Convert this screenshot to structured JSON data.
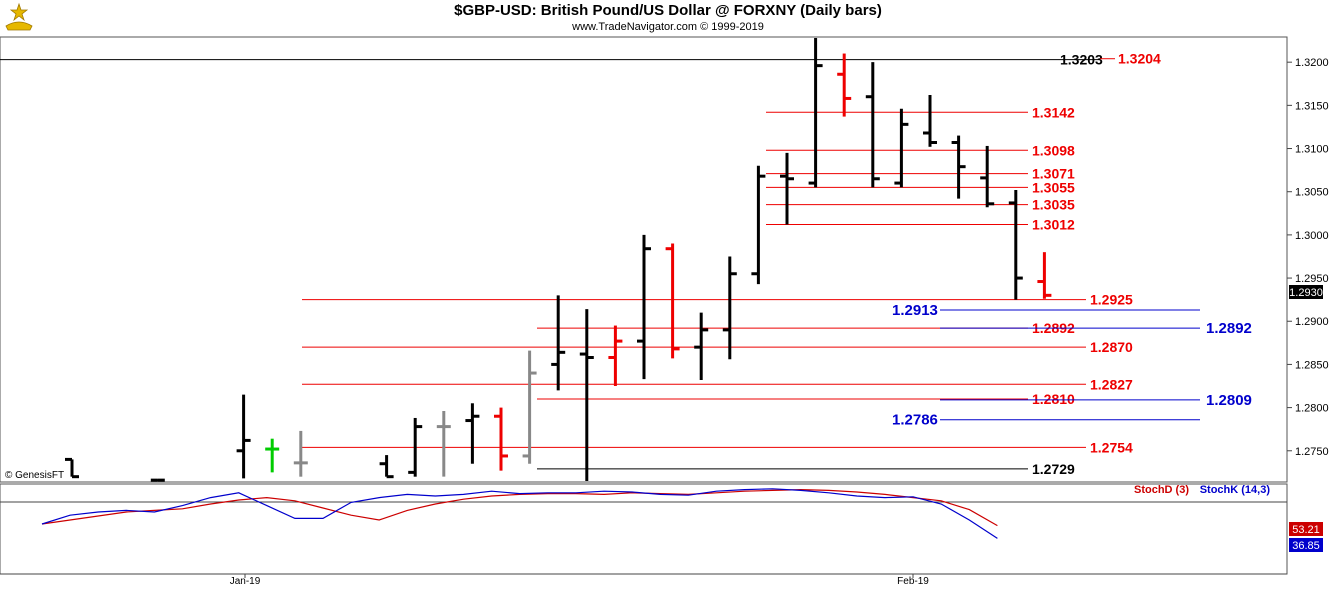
{
  "header": {
    "title": "$GBP-USD:  British Pound/US Dollar @ FORXNY  (Daily bars)",
    "subtitle": "www.TradeNavigator.com © 1999-2019"
  },
  "watermark": "© GenesisFT",
  "colors": {
    "up_bar": "#000000",
    "down_bar": "#ee0000",
    "neutral_bar": "#888888",
    "level_red": "#ee0000",
    "level_blue": "#0000cc",
    "stoch_d": "#cc0000",
    "stoch_k": "#0000cc"
  },
  "chart_data": [
    {
      "type": "ohlc",
      "title": "$GBP-USD:  British Pound/US Dollar @ FORXNY  (Daily bars)",
      "ylim": [
        1.2715,
        1.3228
      ],
      "y_ticks": [
        "1.3200",
        "1.3150",
        "1.3100",
        "1.3050",
        "1.3000",
        "1.2950",
        "1.2900",
        "1.2850",
        "1.2800",
        "1.2750"
      ],
      "last_price": "1.2930",
      "bars": [
        {
          "i": 0,
          "o": 1.274,
          "h": 1.274,
          "l": 1.272,
          "c": 1.272,
          "color": "up"
        },
        {
          "i": 3,
          "o": 1.2716,
          "h": 1.2717,
          "l": 1.2715,
          "c": 1.2716,
          "color": "up"
        },
        {
          "i": 6,
          "o": 1.275,
          "h": 1.2815,
          "l": 1.2718,
          "c": 1.2762,
          "color": "up"
        },
        {
          "i": 7,
          "o": 1.2752,
          "h": 1.2764,
          "l": 1.2725,
          "c": 1.2752,
          "color": "green"
        },
        {
          "i": 8,
          "o": 1.2736,
          "h": 1.2773,
          "l": 1.272,
          "c": 1.2736,
          "color": "neutral"
        },
        {
          "i": 11,
          "o": 1.2735,
          "h": 1.2745,
          "l": 1.272,
          "c": 1.272,
          "color": "up"
        },
        {
          "i": 12,
          "o": 1.2725,
          "h": 1.2788,
          "l": 1.272,
          "c": 1.2778,
          "color": "up"
        },
        {
          "i": 13,
          "o": 1.2778,
          "h": 1.2796,
          "l": 1.272,
          "c": 1.2778,
          "color": "neutral"
        },
        {
          "i": 14,
          "o": 1.2785,
          "h": 1.2805,
          "l": 1.2735,
          "c": 1.279,
          "color": "up"
        },
        {
          "i": 15,
          "o": 1.279,
          "h": 1.28,
          "l": 1.2727,
          "c": 1.2744,
          "color": "down"
        },
        {
          "i": 16,
          "o": 1.2744,
          "h": 1.2866,
          "l": 1.2735,
          "c": 1.284,
          "color": "neutral"
        },
        {
          "i": 17,
          "o": 1.285,
          "h": 1.293,
          "l": 1.282,
          "c": 1.2864,
          "color": "up"
        },
        {
          "i": 18,
          "o": 1.2862,
          "h": 1.2914,
          "l": 1.2715,
          "c": 1.2858,
          "color": "up"
        },
        {
          "i": 19,
          "o": 1.2858,
          "h": 1.2895,
          "l": 1.2825,
          "c": 1.2877,
          "color": "down"
        },
        {
          "i": 20,
          "o": 1.2877,
          "h": 1.3,
          "l": 1.2833,
          "c": 1.2984,
          "color": "up"
        },
        {
          "i": 21,
          "o": 1.2984,
          "h": 1.299,
          "l": 1.2857,
          "c": 1.2868,
          "color": "down"
        },
        {
          "i": 22,
          "o": 1.287,
          "h": 1.291,
          "l": 1.2832,
          "c": 1.289,
          "color": "up"
        },
        {
          "i": 23,
          "o": 1.289,
          "h": 1.2975,
          "l": 1.2856,
          "c": 1.2955,
          "color": "up"
        },
        {
          "i": 24,
          "o": 1.2955,
          "h": 1.308,
          "l": 1.2943,
          "c": 1.3068,
          "color": "up"
        },
        {
          "i": 25,
          "o": 1.3068,
          "h": 1.3095,
          "l": 1.3012,
          "c": 1.3065,
          "color": "up"
        },
        {
          "i": 26,
          "o": 1.306,
          "h": 1.3228,
          "l": 1.3055,
          "c": 1.3196,
          "color": "up"
        },
        {
          "i": 27,
          "o": 1.3186,
          "h": 1.321,
          "l": 1.3137,
          "c": 1.3158,
          "color": "down"
        },
        {
          "i": 28,
          "o": 1.316,
          "h": 1.32,
          "l": 1.3055,
          "c": 1.3065,
          "color": "up"
        },
        {
          "i": 29,
          "o": 1.306,
          "h": 1.3146,
          "l": 1.3055,
          "c": 1.3128,
          "color": "up"
        },
        {
          "i": 30,
          "o": 1.3118,
          "h": 1.3162,
          "l": 1.3102,
          "c": 1.3107,
          "color": "up"
        },
        {
          "i": 31,
          "o": 1.3107,
          "h": 1.3115,
          "l": 1.3042,
          "c": 1.3079,
          "color": "up"
        },
        {
          "i": 32,
          "o": 1.3066,
          "h": 1.3103,
          "l": 1.3032,
          "c": 1.3036,
          "color": "up"
        },
        {
          "i": 33,
          "o": 1.3037,
          "h": 1.3052,
          "l": 1.2925,
          "c": 1.295,
          "color": "up"
        },
        {
          "i": 34,
          "o": 1.2946,
          "h": 1.298,
          "l": 1.2926,
          "c": 1.293,
          "color": "down"
        }
      ],
      "levels": [
        {
          "label": "1.3203",
          "value": 1.3203,
          "color": "black"
        },
        {
          "label": "1.3204",
          "value": 1.3204,
          "color": "red"
        },
        {
          "label": "1.3142",
          "value": 1.3142,
          "color": "red"
        },
        {
          "label": "1.3098",
          "value": 1.3098,
          "color": "red"
        },
        {
          "label": "1.3071",
          "value": 1.3071,
          "color": "red"
        },
        {
          "label": "1.3055",
          "value": 1.3055,
          "color": "red"
        },
        {
          "label": "1.3035",
          "value": 1.3035,
          "color": "red"
        },
        {
          "label": "1.3012",
          "value": 1.3012,
          "color": "red"
        },
        {
          "label": "1.2925",
          "value": 1.2925,
          "color": "red"
        },
        {
          "label": "1.2913",
          "value": 1.2913,
          "color": "blue"
        },
        {
          "label": "1.2892",
          "value": 1.2892,
          "color": "red"
        },
        {
          "label": "1.2892",
          "value": 1.2892,
          "color": "blue"
        },
        {
          "label": "1.2870",
          "value": 1.287,
          "color": "red"
        },
        {
          "label": "1.2827",
          "value": 1.2827,
          "color": "red"
        },
        {
          "label": "1.2810",
          "value": 1.281,
          "color": "red"
        },
        {
          "label": "1.2809",
          "value": 1.2809,
          "color": "blue"
        },
        {
          "label": "1.2786",
          "value": 1.2786,
          "color": "blue"
        },
        {
          "label": "1.2754",
          "value": 1.2754,
          "color": "red"
        },
        {
          "label": "1.2729",
          "value": 1.2729,
          "color": "black"
        }
      ]
    },
    {
      "type": "line",
      "legend": [
        "StochD (3)",
        "StochK (14,3)"
      ],
      "last_values": {
        "stoch_d": "53.21",
        "stoch_k": "36.85"
      },
      "series": [
        {
          "name": "StochD (3)",
          "values": [
            55,
            60,
            65,
            70,
            72,
            74,
            80,
            85,
            88,
            84,
            75,
            66,
            60,
            72,
            80,
            86,
            90,
            92,
            93,
            93,
            92,
            94,
            93,
            92,
            94,
            96,
            97,
            98,
            97,
            95,
            92,
            88,
            84,
            73,
            53
          ]
        },
        {
          "name": "StochK (14,3)",
          "values": [
            55,
            66,
            70,
            72,
            70,
            78,
            88,
            94,
            78,
            62,
            62,
            82,
            88,
            92,
            90,
            92,
            96,
            93,
            94,
            94,
            96,
            95,
            92,
            91,
            96,
            98,
            99,
            97,
            94,
            90,
            88,
            89,
            80,
            60,
            37
          ]
        }
      ],
      "x_labels": [
        "Jan-19",
        "Feb-19"
      ]
    }
  ]
}
